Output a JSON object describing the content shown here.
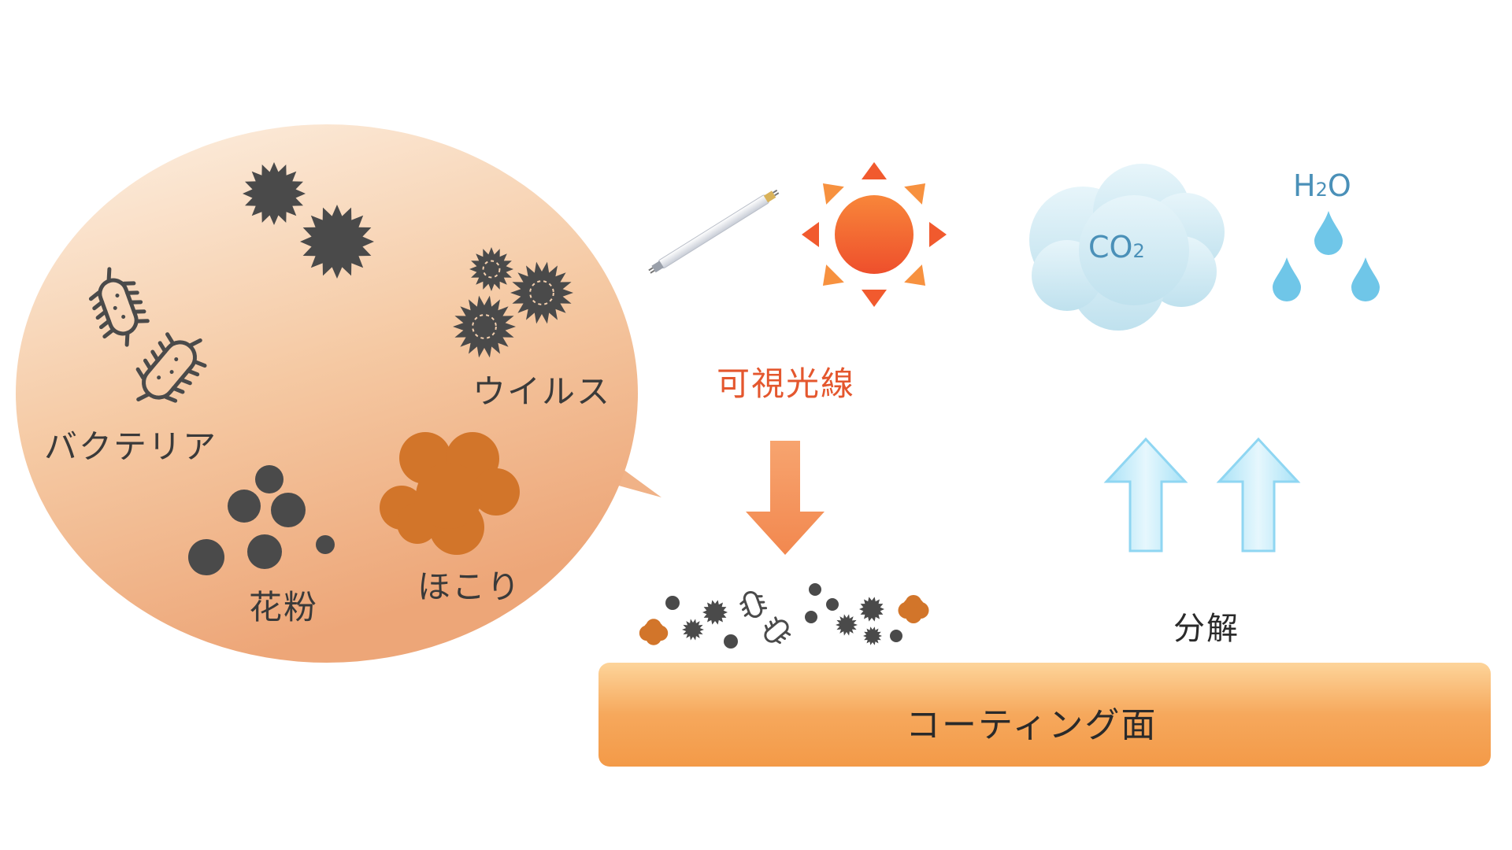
{
  "bubble": {
    "labels": {
      "virus": "ウイルス",
      "bacteria": "バクテリア",
      "pollen": "花粉",
      "dust": "ほこり"
    }
  },
  "light": {
    "label": "可視光線",
    "color": "#e4572e"
  },
  "products": {
    "co2": "CO",
    "co2_sub": "2",
    "h2o_h": "H",
    "h2o_sub": "2",
    "h2o_o": "O",
    "color": "#4a90b8"
  },
  "decompose": {
    "label": "分解"
  },
  "surface": {
    "label": "コーティング面"
  },
  "colors": {
    "germ": "#4a4a4a",
    "dust": "#d2752a",
    "arrow_down": "#f28a55",
    "arrow_up": "#8fd6f2",
    "surface": "#f5a04f",
    "cloud": "#cfe9f3",
    "drop": "#6fc6e8"
  },
  "icons": [
    "virus-icon",
    "bacteria-icon",
    "pollen-icon",
    "dust-icon",
    "fluorescent-lamp-icon",
    "sun-icon",
    "cloud-icon",
    "water-drop-icon",
    "down-arrow-icon",
    "up-arrow-icon"
  ]
}
